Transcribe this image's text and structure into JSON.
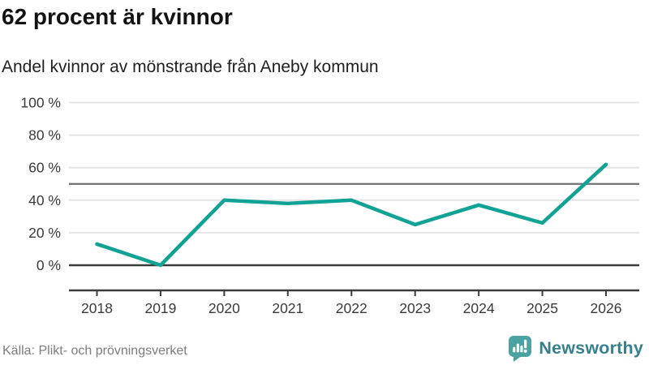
{
  "header": {
    "title": "62 procent är kvinnor",
    "subtitle": "Andel kvinnor av mönstrande från Aneby kommun"
  },
  "chart_data": {
    "type": "line",
    "title": "62 procent är kvinnor",
    "subtitle": "Andel kvinnor av mönstrande från Aneby kommun",
    "categories": [
      "2018",
      "2019",
      "2020",
      "2021",
      "2022",
      "2023",
      "2024",
      "2025",
      "2026"
    ],
    "series": [
      {
        "name": "Andel kvinnor av mönstrande, Aneby kommun",
        "values": [
          13,
          0,
          40,
          38,
          40,
          25,
          37,
          26,
          62
        ]
      }
    ],
    "unit": "%",
    "ylim": [
      0,
      100
    ],
    "yticks": [
      0,
      20,
      40,
      60,
      80,
      100
    ],
    "y_tick_suffix": " %",
    "reference_line_y": 50,
    "grid": "horizontal",
    "legend": "none"
  },
  "footer": {
    "source": "Källa: Plikt- och prövningsverket",
    "brand_name": "Newsworthy"
  },
  "colors": {
    "line": "#11a296",
    "grid_light": "#e4e4e4",
    "reference_line": "#707070",
    "zero_line": "#3b3b3b",
    "axis": "#3b3b3b",
    "tick_label": "#3a3a3a",
    "logo_pin": "#4aa3a1",
    "logo_glyph": "#ffffff",
    "logo_text": "#35808d"
  }
}
